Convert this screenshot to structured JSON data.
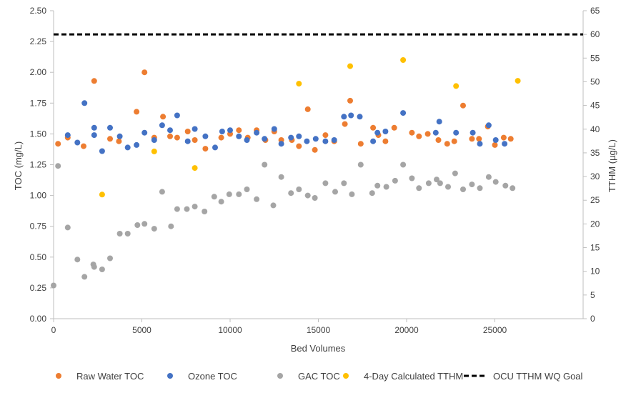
{
  "chart_data": {
    "type": "scatter",
    "title": "",
    "xlabel": "Bed Volumes",
    "ylabel": "TOC (mg/L)",
    "y2label": "TTHM (µg/L)",
    "xlim": [
      0,
      30000
    ],
    "ylim": [
      0,
      2.5
    ],
    "y2lim": [
      0,
      65
    ],
    "x_ticks": [
      "0",
      "5000",
      "10000",
      "15000",
      "20000",
      "25000"
    ],
    "x_tick_values": [
      0,
      5000,
      10000,
      15000,
      20000,
      25000
    ],
    "y_ticks": [
      "0.00",
      "0.25",
      "0.50",
      "0.75",
      "1.00",
      "1.25",
      "1.50",
      "1.75",
      "2.00",
      "2.25",
      "2.50"
    ],
    "y_tick_values": [
      0,
      0.25,
      0.5,
      0.75,
      1.0,
      1.25,
      1.5,
      1.75,
      2.0,
      2.25,
      2.5
    ],
    "y2_ticks": [
      "0",
      "5",
      "10",
      "15",
      "20",
      "25",
      "30",
      "35",
      "40",
      "45",
      "50",
      "55",
      "60",
      "65"
    ],
    "y2_tick_values": [
      0,
      5,
      10,
      15,
      20,
      25,
      30,
      35,
      40,
      45,
      50,
      55,
      60,
      65
    ],
    "legend_position": "bottom",
    "series": [
      {
        "name": "Raw Water TOC",
        "axis": "left",
        "color": "#ED7D31",
        "x": [
          250,
          800,
          1700,
          2300,
          3200,
          3700,
          4700,
          5150,
          5700,
          6200,
          6600,
          7000,
          7600,
          8000,
          8600,
          9500,
          10000,
          10500,
          11000,
          11500,
          12000,
          12500,
          12900,
          13500,
          13900,
          14400,
          14800,
          15400,
          15900,
          16500,
          16800,
          17400,
          18100,
          18400,
          18800,
          19300,
          20300,
          20700,
          21200,
          21800,
          22300,
          22700,
          23200,
          23700,
          24100,
          24600,
          25000,
          25500,
          25900
        ],
        "y": [
          1.42,
          1.47,
          1.4,
          1.93,
          1.46,
          1.44,
          1.68,
          2.0,
          1.47,
          1.64,
          1.48,
          1.47,
          1.52,
          1.45,
          1.38,
          1.47,
          1.5,
          1.53,
          1.47,
          1.53,
          1.45,
          1.52,
          1.45,
          1.45,
          1.4,
          1.7,
          1.37,
          1.49,
          1.44,
          1.58,
          1.77,
          1.42,
          1.55,
          1.49,
          1.44,
          1.55,
          1.51,
          1.48,
          1.5,
          1.45,
          1.42,
          1.44,
          1.73,
          1.46,
          1.46,
          1.56,
          1.41,
          1.47,
          1.46
        ]
      },
      {
        "name": "Ozone TOC",
        "axis": "left",
        "color": "#4472C4",
        "x": [
          800,
          1350,
          1750,
          2300,
          2300,
          2750,
          3200,
          3750,
          4200,
          4700,
          5150,
          5700,
          6150,
          6600,
          7000,
          7600,
          8000,
          8600,
          9150,
          9550,
          10000,
          10500,
          10950,
          11500,
          11950,
          12500,
          12900,
          13450,
          13900,
          14350,
          14850,
          15400,
          15900,
          16450,
          16850,
          17350,
          18100,
          18350,
          18800,
          19800,
          21650,
          21850,
          22800,
          23750,
          24150,
          24650,
          25050,
          25550
        ],
        "y": [
          1.49,
          1.43,
          1.75,
          1.55,
          1.49,
          1.36,
          1.55,
          1.48,
          1.39,
          1.41,
          1.51,
          1.45,
          1.57,
          1.53,
          1.65,
          1.44,
          1.54,
          1.48,
          1.39,
          1.52,
          1.53,
          1.48,
          1.45,
          1.51,
          1.46,
          1.54,
          1.42,
          1.47,
          1.48,
          1.44,
          1.46,
          1.44,
          1.45,
          1.64,
          1.65,
          1.64,
          1.44,
          1.51,
          1.52,
          1.67,
          1.51,
          1.6,
          1.51,
          1.51,
          1.42,
          1.57,
          1.45,
          1.42
        ]
      },
      {
        "name": "GAC TOC",
        "axis": "left",
        "color": "#A5A5A5",
        "x": [
          0,
          250,
          800,
          1350,
          1750,
          2250,
          2300,
          2750,
          3200,
          3750,
          4200,
          4750,
          5150,
          5700,
          6150,
          6650,
          7000,
          7550,
          8000,
          8550,
          9100,
          9500,
          9950,
          10500,
          10950,
          11500,
          11950,
          12450,
          12900,
          13450,
          13900,
          14400,
          14800,
          15400,
          15950,
          16450,
          16900,
          17400,
          18050,
          18350,
          18850,
          19350,
          19800,
          20300,
          20700,
          21250,
          21700,
          21900,
          22350,
          22750,
          23200,
          23700,
          24150,
          24650,
          25050,
          25600,
          26000
        ],
        "y": [
          0.27,
          1.24,
          0.74,
          0.48,
          0.34,
          0.44,
          0.42,
          0.4,
          0.49,
          0.69,
          0.69,
          0.76,
          0.77,
          0.73,
          1.03,
          0.75,
          0.89,
          0.89,
          0.91,
          0.87,
          0.99,
          0.95,
          1.01,
          1.01,
          1.05,
          0.97,
          1.25,
          0.92,
          1.15,
          1.02,
          1.05,
          1.0,
          0.98,
          1.1,
          1.03,
          1.1,
          1.01,
          1.25,
          1.02,
          1.08,
          1.07,
          1.12,
          1.25,
          1.14,
          1.06,
          1.1,
          1.13,
          1.1,
          1.07,
          1.18,
          1.05,
          1.09,
          1.06,
          1.15,
          1.11,
          1.08,
          1.06
        ]
      },
      {
        "name": "4-Day Calculated TTHM",
        "axis": "right",
        "color": "#FFC000",
        "x": [
          2750,
          5700,
          8000,
          13900,
          16800,
          19800,
          22800,
          26300
        ],
        "y": [
          26.2,
          35.3,
          31.8,
          49.6,
          53.3,
          54.6,
          49.1,
          50.2
        ]
      }
    ],
    "reference_lines": [
      {
        "name": "OCU TTHM WQ Goal",
        "axis": "right",
        "value": 60,
        "style": "dashed",
        "color": "#000000"
      }
    ],
    "grid": false
  }
}
